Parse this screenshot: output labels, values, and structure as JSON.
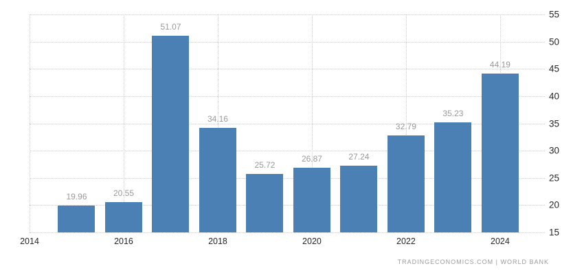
{
  "chart_data": {
    "type": "bar",
    "title": "",
    "xlabel": "",
    "ylabel": "",
    "categories": [
      2015,
      2016,
      2017,
      2018,
      2019,
      2020,
      2021,
      2022,
      2023,
      2024
    ],
    "values": [
      19.96,
      20.55,
      51.07,
      34.16,
      25.72,
      26.87,
      27.24,
      32.79,
      35.23,
      44.19
    ],
    "value_labels": [
      "19.96",
      "20.55",
      "51.07",
      "34.16",
      "25.72",
      "26.87",
      "27.24",
      "32.79",
      "35.23",
      "44.19"
    ],
    "xticks": [
      {
        "value": 2014,
        "label": "2014"
      },
      {
        "value": 2016,
        "label": "2016"
      },
      {
        "value": 2018,
        "label": "2018"
      },
      {
        "value": 2020,
        "label": "2020"
      },
      {
        "value": 2022,
        "label": "2022"
      },
      {
        "value": 2024,
        "label": "2024"
      }
    ],
    "yticks": [
      {
        "value": 15,
        "label": "15"
      },
      {
        "value": 20,
        "label": "20"
      },
      {
        "value": 25,
        "label": "25"
      },
      {
        "value": 30,
        "label": "30"
      },
      {
        "value": 35,
        "label": "35"
      },
      {
        "value": 40,
        "label": "40"
      },
      {
        "value": 45,
        "label": "45"
      },
      {
        "value": 50,
        "label": "50"
      },
      {
        "value": 55,
        "label": "55"
      }
    ],
    "xlim": [
      2014,
      2024.95
    ],
    "ylim": [
      15,
      55
    ],
    "grid": true,
    "legend": false,
    "colors": {
      "bar": "#4a80b4",
      "grid": "#cccccc",
      "value_label": "#999999",
      "tick_label": "#262626",
      "watermark": "#9b9b9b",
      "background": "#ffffff"
    }
  },
  "footer": {
    "source": "TRADINGECONOMICS.COM  |  WORLD BANK"
  }
}
